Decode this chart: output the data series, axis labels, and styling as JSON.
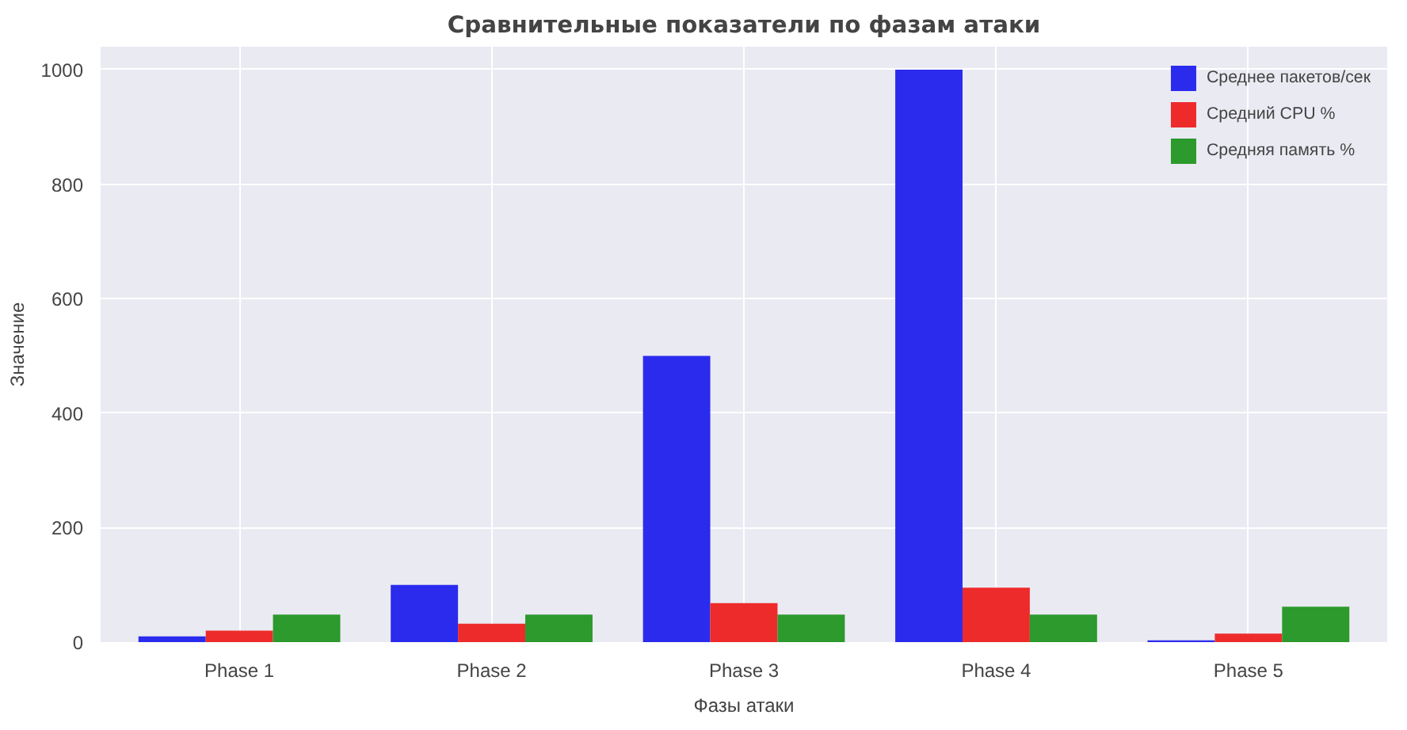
{
  "chart_data": {
    "type": "bar",
    "title": "Сравнительные показатели по фазам атаки",
    "xlabel": "Фазы атаки",
    "ylabel": "Значение",
    "categories": [
      "Phase 1",
      "Phase 2",
      "Phase 3",
      "Phase 4",
      "Phase 5"
    ],
    "series": [
      {
        "name": "Среднее пакетов/сек",
        "color": "#2b2bee",
        "values": [
          10,
          100,
          500,
          1000,
          3
        ]
      },
      {
        "name": "Средний CPU %",
        "color": "#ee2b2b",
        "values": [
          20,
          32,
          68,
          95,
          15
        ]
      },
      {
        "name": "Средняя память %",
        "color": "#2c9a2c",
        "values": [
          48,
          48,
          48,
          48,
          62
        ]
      }
    ],
    "ylim": [
      0,
      1040
    ],
    "yticks": [
      0,
      200,
      400,
      600,
      800,
      1000
    ],
    "grid": true,
    "legend": "top right"
  }
}
